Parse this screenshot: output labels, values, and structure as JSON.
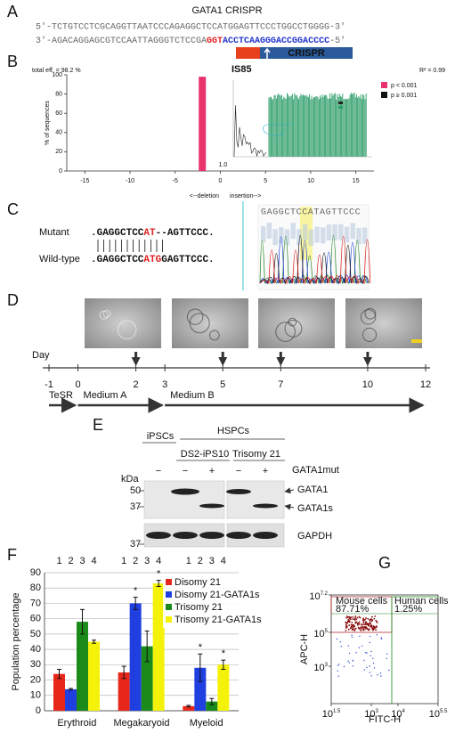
{
  "panels": {
    "A": {
      "letter": "A",
      "title": "GATA1 CRISPR",
      "top_strand": "5′-TCTGTCCTCGCAGGTTAATCCCAGAGGCTCCATGGAGTTCCCTGGCCTGGGG-3′",
      "bottom_strand": [
        "3′-AGACAGGAGCGTCCAATTAGGGTCTCCGA",
        "GGT",
        "ACCTCAAGGGACCGGACCCC",
        "-5′"
      ],
      "guide_label": "CRISPR"
    },
    "C": {
      "letter": "C",
      "mutant_label": "Mutant",
      "mutant_seq": [
        ".GAGGCTCC",
        "AT",
        "--AGTTCCC."
      ],
      "wildtype_label": "Wild-type",
      "wildtype_seq": [
        ".GAGGCTCC",
        "ATG",
        "GAGTTCCC."
      ],
      "trace_seq": "GAGGCTCCATAGTTCCC"
    },
    "D": {
      "letter": "D",
      "axis_label": "Day",
      "days": [
        -1,
        0,
        2,
        3,
        5,
        7,
        10,
        12
      ],
      "sample_days": [
        2,
        5,
        7,
        10
      ],
      "media": [
        {
          "label": "TeSR",
          "start": -1,
          "end": 0
        },
        {
          "label": "Medium A",
          "start": 0,
          "end": 3
        },
        {
          "label": "Medium B",
          "start": 3,
          "end": 12
        }
      ]
    },
    "E": {
      "letter": "E",
      "group_labels": [
        "iPSCs",
        "HSPCs"
      ],
      "line_labels": [
        "DS2-iPS10",
        "Trisomy 21"
      ],
      "treatment_label": "GATA1mut",
      "treatment": [
        "−",
        "−",
        "+",
        "−",
        "+"
      ],
      "unit_label": "kDa",
      "markers": [
        50,
        37
      ],
      "loading_marker": 37,
      "bands": [
        "GATA1",
        "GATA1s"
      ],
      "loading_label": "GAPDH"
    }
  },
  "chart_data": [
    {
      "type": "bar",
      "letter": "B",
      "annotation_left": "total eff. = 98.2 %",
      "annotation_right": "R² = 0.99",
      "inset_title": "IS85",
      "ylabel": "% of sequences",
      "x": [
        -2
      ],
      "series": [
        {
          "name": "p < 0.001",
          "color": "#e8336d",
          "values": [
            98
          ]
        },
        {
          "name": "p ≥ 0.001",
          "color": "#111111",
          "values": [
            null
          ]
        }
      ],
      "xlim": [
        -17,
        17
      ],
      "xticks": [
        -15,
        -10,
        -5,
        0,
        5,
        10,
        15
      ],
      "ylim": [
        0,
        100
      ],
      "yticks": [
        0,
        20,
        40,
        60,
        80,
        100
      ],
      "x_annotations": [
        "<--deletion",
        "insertion-->"
      ],
      "peak_label": "1.0"
    },
    {
      "type": "bar",
      "letter": "F",
      "ylabel": "Population percentage",
      "categories": [
        "Erythroid",
        "Megakaryoid",
        "Myeloid"
      ],
      "column_labels": [
        "1",
        "2",
        "3",
        "4"
      ],
      "series": [
        {
          "name": "Disomy 21",
          "color": "#e8271b",
          "values": [
            24,
            25,
            3
          ],
          "errors": [
            3,
            4,
            0.5
          ],
          "annotations": [
            null,
            null,
            null
          ]
        },
        {
          "name": "Disomy 21-GATA1s",
          "color": "#1f3fe0",
          "values": [
            14,
            70,
            28
          ],
          "errors": [
            0.5,
            4,
            9
          ],
          "annotations": [
            null,
            "*",
            "*"
          ]
        },
        {
          "name": "Trisomy 21",
          "color": "#1a8a1a",
          "values": [
            58,
            42,
            6
          ],
          "errors": [
            8,
            10,
            2
          ],
          "annotations": [
            null,
            null,
            null
          ]
        },
        {
          "name": "Trisomy 21-GATA1s",
          "color": "#f5f20a",
          "values": [
            45,
            83,
            30
          ],
          "errors": [
            1,
            2,
            3
          ],
          "annotations": [
            null,
            "*",
            "*"
          ]
        }
      ],
      "ylim": [
        0,
        90
      ],
      "yticks": [
        0,
        10,
        20,
        30,
        40,
        50,
        60,
        70,
        80,
        90
      ],
      "grid": true
    },
    {
      "type": "scatter",
      "letter": "G",
      "xlabel": "FITC-H",
      "ylabel": "APC-H",
      "tick_base": "10",
      "xlim": [
        1.5,
        5.5
      ],
      "xticks": [
        1.5,
        3,
        4,
        5.5
      ],
      "ylim": [
        0.8,
        7.2
      ],
      "yticks": [
        3,
        5,
        7.2
      ],
      "gates": [
        {
          "label": "Mouse cells",
          "percent_label": "87.71%",
          "color": "#b02020"
        },
        {
          "label": "Human cells",
          "percent_label": "1.25%",
          "color": "#1a8a1a"
        }
      ]
    }
  ]
}
